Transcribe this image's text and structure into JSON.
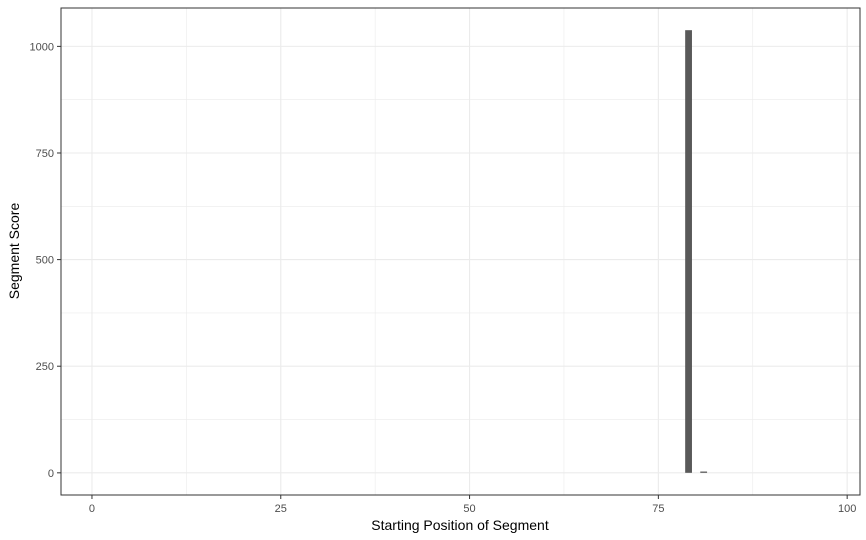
{
  "chart_data": {
    "type": "bar",
    "title": "",
    "xlabel": "Starting Position of Segment",
    "ylabel": "Segment Score",
    "xlim": [
      -4.1,
      101.7
    ],
    "ylim": [
      -52,
      1090
    ],
    "x_ticks": [
      0,
      25,
      50,
      75,
      100
    ],
    "y_ticks": [
      0,
      250,
      500,
      750,
      1000
    ],
    "x_tick_labels": [
      "0",
      "25",
      "50",
      "75",
      "100"
    ],
    "y_tick_labels": [
      "0",
      "250",
      "500",
      "750",
      "1000"
    ],
    "bar_width": 0.9,
    "grid": true,
    "legend": "none",
    "bar_color": "#595959",
    "series": [
      {
        "x": [
          79,
          81
        ],
        "values": [
          1038,
          3
        ]
      }
    ]
  }
}
